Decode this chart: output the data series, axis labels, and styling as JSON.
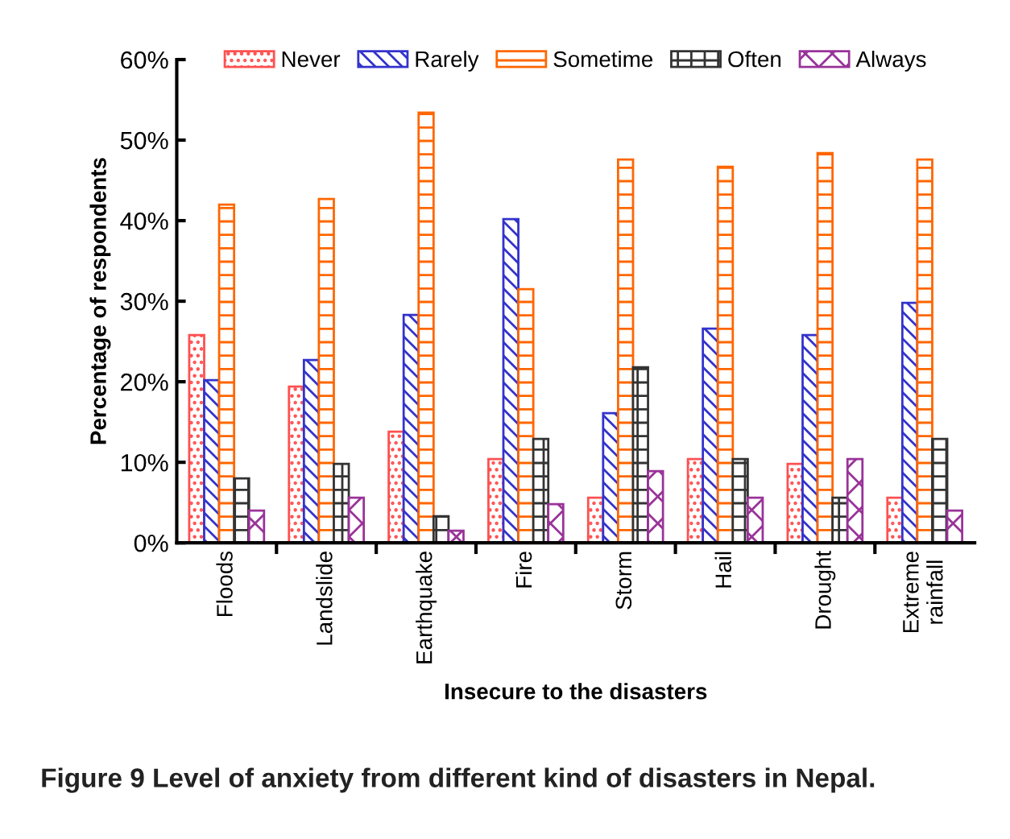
{
  "chart_data": {
    "type": "bar",
    "xlabel": "Insecure to the disasters",
    "ylabel": "Percentage of respondents",
    "categories": [
      "Floods",
      "Landslide",
      "Earthquake",
      "Fire",
      "Storm",
      "Hail",
      "Drought",
      "Extreme\nrainfall"
    ],
    "series": [
      {
        "name": "Never",
        "color": "#ff5050",
        "values": [
          25.8,
          19.4,
          13.8,
          10.4,
          5.6,
          10.4,
          9.8,
          5.6
        ]
      },
      {
        "name": "Rarely",
        "color": "#3333cc",
        "values": [
          20.2,
          22.7,
          28.3,
          40.2,
          16.1,
          26.6,
          25.8,
          29.8
        ]
      },
      {
        "name": "Sometime",
        "color": "#ff6600",
        "values": [
          42.0,
          42.7,
          53.4,
          31.5,
          47.6,
          46.7,
          48.4,
          47.6
        ]
      },
      {
        "name": "Often",
        "color": "#333333",
        "values": [
          8.0,
          9.8,
          3.3,
          12.9,
          21.8,
          10.4,
          5.6,
          12.9
        ]
      },
      {
        "name": "Always",
        "color": "#993399",
        "values": [
          4.0,
          5.6,
          1.5,
          4.8,
          8.9,
          5.6,
          10.4,
          4.0
        ]
      }
    ],
    "ylim": [
      0,
      60
    ],
    "yticks": [
      {
        "value": 0,
        "label": "0%"
      },
      {
        "value": 10,
        "label": "10%"
      },
      {
        "value": 20,
        "label": "20%"
      },
      {
        "value": 30,
        "label": "30%"
      },
      {
        "value": 40,
        "label": "40%"
      },
      {
        "value": 50,
        "label": "50%"
      },
      {
        "value": 60,
        "label": "60%"
      }
    ],
    "grid": false,
    "legend": "top",
    "annotations": [
      "Figure 9 Level of anxiety from different kind of disasters in Nepal."
    ]
  }
}
